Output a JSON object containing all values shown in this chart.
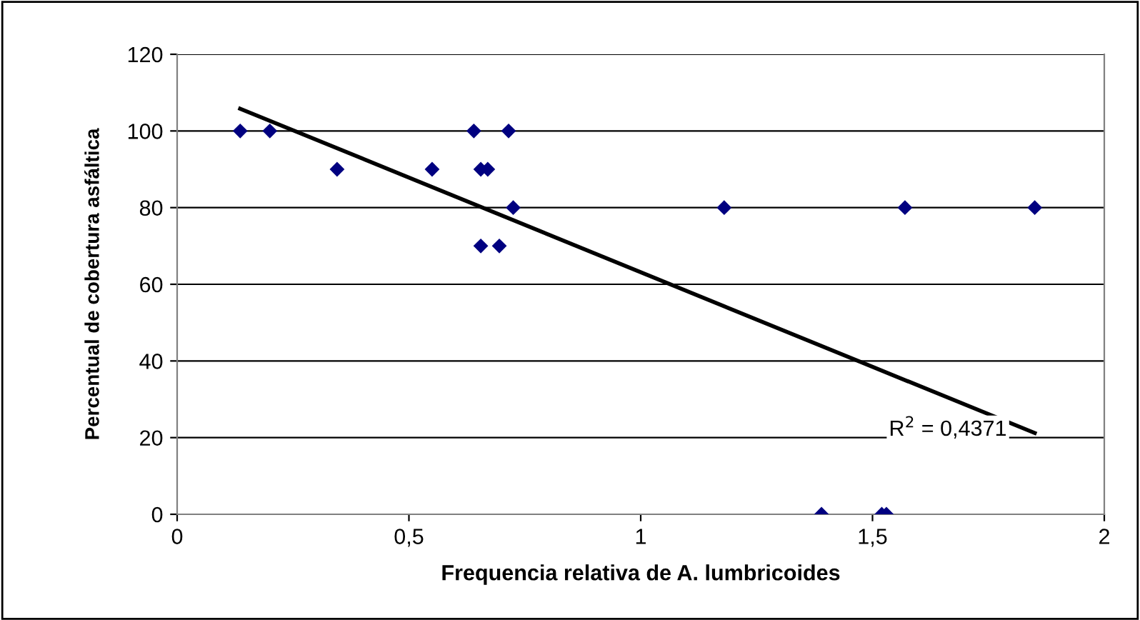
{
  "chart_data": {
    "type": "scatter",
    "xlabel": "Frequencia relativa de A. lumbricoides",
    "ylabel": "Percentual de cobertura asfáltica",
    "xlim": [
      0,
      2
    ],
    "xticks": [
      0,
      {
        "value": 0.5,
        "label": "0,5"
      },
      1,
      {
        "value": 1.5,
        "label": "1,5"
      },
      2
    ],
    "ylim": [
      0,
      120
    ],
    "yticks": [
      0,
      20,
      40,
      60,
      80,
      100,
      120
    ],
    "grid": "y",
    "marker": "diamond",
    "legend": false,
    "annotations": [
      "R$^{2}$ = 0,4371"
    ],
    "series": [
      {
        "color": "#000080",
        "x": [
          0.136,
          0.2,
          0.64,
          0.715,
          0.345,
          0.55,
          0.655,
          0.67,
          0.725,
          0.655,
          0.695,
          1.18,
          1.57,
          1.85,
          1.39,
          1.52,
          1.53
        ],
        "values": [
          100,
          100,
          100,
          100,
          90,
          90,
          90,
          90,
          80,
          70,
          70,
          80,
          80,
          80,
          0,
          0,
          0
        ]
      },
      {
        "type": "line",
        "color": "#000000",
        "marker": "none",
        "line_style": "solid",
        "x": [
          0.136,
          1.85
        ],
        "values": [
          105.8,
          21.2
        ]
      }
    ]
  }
}
